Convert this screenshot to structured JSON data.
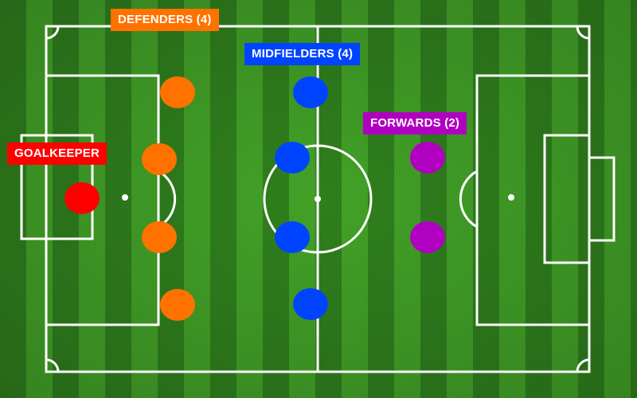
{
  "formation": {
    "goalkeeper": {
      "label": "GOALKEEPER",
      "count": 1,
      "color": "#ff0000"
    },
    "defenders": {
      "label": "DEFENDERS (4)",
      "count": 4,
      "color": "#ff7200"
    },
    "midfielders": {
      "label": "MIDFIELDERS (4)",
      "count": 4,
      "color": "#0044ff"
    },
    "forwards": {
      "label": "FORWARDS (2)",
      "count": 2,
      "color": "#b000c0"
    }
  },
  "pitch": {
    "grass_dark": "#2e7d1c",
    "grass_light": "#45a52a",
    "line_color": "#ffffff"
  }
}
